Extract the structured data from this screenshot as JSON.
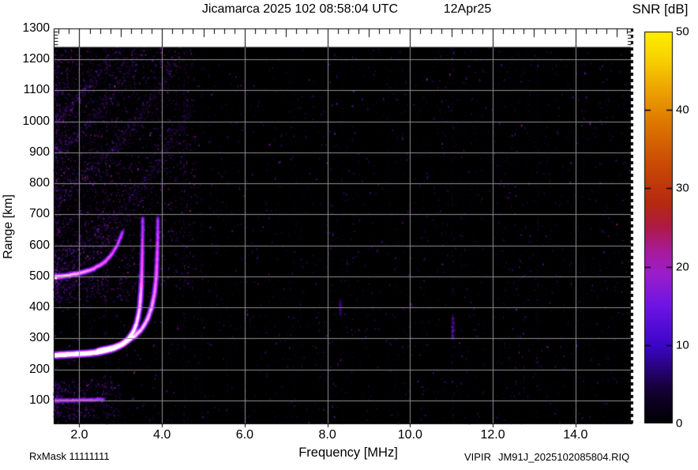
{
  "header": {
    "title": "Jicamarca 2025 102 08:58:04 UTC",
    "date": "12Apr25"
  },
  "axes": {
    "x": {
      "label": "Frequency [MHz]"
    },
    "y": {
      "label": "Range [km]"
    }
  },
  "footer": {
    "rx_mask": "RxMask 11111111",
    "instrument": "VIPIR",
    "filename": "JM91J_2025102085804.RIQ"
  },
  "chart_data": {
    "type": "heatmap",
    "title": "Jicamarca 2025 102 08:58:04 UTC 12Apr25",
    "xlabel": "Frequency [MHz]",
    "ylabel": "Range [km]",
    "xlim": [
      1.38,
      15.36
    ],
    "ylim": [
      26,
      1300
    ],
    "x_ticks": [
      2,
      4,
      6,
      8,
      10,
      12,
      14
    ],
    "x_tick_labels": [
      "2.0",
      "4.0",
      "6.0",
      "8.0",
      "10.0",
      "12.0",
      "14.0"
    ],
    "y_ticks": [
      100,
      200,
      300,
      400,
      500,
      600,
      700,
      800,
      900,
      1000,
      1100,
      1200,
      1300
    ],
    "data_top_km": 1240,
    "grid": true,
    "grid_color": "#8f8f8f",
    "colorbar": {
      "label": "SNR [dB]",
      "min": 0,
      "max": 50,
      "ticks": [
        0,
        10,
        20,
        30,
        40,
        50
      ],
      "gradient": [
        [
          0.0,
          "#000000"
        ],
        [
          0.09,
          "#160038"
        ],
        [
          0.2,
          "#3c06c8"
        ],
        [
          0.3,
          "#6e14e4"
        ],
        [
          0.38,
          "#9a1ecc"
        ],
        [
          0.44,
          "#a81a9a"
        ],
        [
          0.5,
          "#ae1a46"
        ],
        [
          0.56,
          "#b62810"
        ],
        [
          0.66,
          "#c94a06"
        ],
        [
          0.76,
          "#dc7400"
        ],
        [
          0.86,
          "#eea800"
        ],
        [
          0.93,
          "#f8d200"
        ],
        [
          1.0,
          "#ffee00"
        ]
      ]
    },
    "palette": [
      [
        0.0,
        8,
        2,
        18
      ],
      [
        0.12,
        70,
        16,
        150
      ],
      [
        0.25,
        120,
        24,
        210
      ],
      [
        0.4,
        190,
        30,
        160
      ],
      [
        0.5,
        225,
        60,
        16
      ],
      [
        0.65,
        255,
        120,
        16
      ],
      [
        0.8,
        255,
        176,
        24
      ],
      [
        1.0,
        255,
        238,
        64
      ]
    ],
    "traces": [
      {
        "name": "F-region O-mode",
        "pts": [
          [
            1.38,
            246,
            1
          ],
          [
            1.7,
            248,
            1
          ],
          [
            2.0,
            250,
            1
          ],
          [
            2.3,
            253,
            1
          ],
          [
            2.6,
            259,
            0.95
          ],
          [
            2.85,
            268,
            0.9
          ],
          [
            3.05,
            282,
            0.85
          ],
          [
            3.2,
            300,
            0.8
          ],
          [
            3.32,
            325,
            0.72
          ],
          [
            3.4,
            356,
            0.65
          ],
          [
            3.46,
            398,
            0.6
          ],
          [
            3.49,
            448,
            0.55
          ],
          [
            3.51,
            505,
            0.45
          ],
          [
            3.52,
            565,
            0.35
          ],
          [
            3.53,
            625,
            0.25
          ],
          [
            3.535,
            690,
            0.18
          ]
        ]
      },
      {
        "name": "F-region X-mode",
        "pts": [
          [
            2.45,
            262,
            0.7
          ],
          [
            2.7,
            268,
            0.7
          ],
          [
            2.95,
            277,
            0.68
          ],
          [
            3.15,
            290,
            0.66
          ],
          [
            3.35,
            308,
            0.64
          ],
          [
            3.52,
            332,
            0.6
          ],
          [
            3.65,
            362,
            0.58
          ],
          [
            3.75,
            400,
            0.55
          ],
          [
            3.82,
            445,
            0.5
          ],
          [
            3.86,
            495,
            0.45
          ],
          [
            3.88,
            550,
            0.38
          ],
          [
            3.895,
            615,
            0.28
          ],
          [
            3.9,
            690,
            0.2
          ]
        ]
      },
      {
        "name": "second-hop",
        "pts": [
          [
            1.38,
            498,
            0.65
          ],
          [
            1.7,
            503,
            0.6
          ],
          [
            2.0,
            510,
            0.55
          ],
          [
            2.3,
            522,
            0.5
          ],
          [
            2.55,
            540,
            0.42
          ],
          [
            2.75,
            565,
            0.35
          ],
          [
            2.92,
            600,
            0.28
          ],
          [
            3.05,
            645,
            0.22
          ]
        ]
      },
      {
        "name": "E-region",
        "pts": [
          [
            1.38,
            100,
            0.3
          ],
          [
            1.8,
            100,
            0.28
          ],
          [
            2.2,
            102,
            0.25
          ],
          [
            2.6,
            104,
            0.2
          ]
        ]
      }
    ],
    "spread_bands": [
      {
        "pts": [
          [
            1.38,
            1000
          ],
          [
            1.8,
            1055
          ],
          [
            2.2,
            1115
          ],
          [
            2.6,
            1180
          ],
          [
            2.95,
            1240
          ]
        ],
        "w": 22,
        "a": 0.5
      },
      {
        "pts": [
          [
            1.38,
            900
          ],
          [
            1.9,
            955
          ],
          [
            2.4,
            1025
          ],
          [
            2.9,
            1105
          ],
          [
            3.35,
            1195
          ],
          [
            3.55,
            1240
          ]
        ],
        "w": 30,
        "a": 0.45
      },
      {
        "pts": [
          [
            1.45,
            760
          ],
          [
            1.9,
            800
          ],
          [
            2.4,
            855
          ],
          [
            2.9,
            925
          ],
          [
            3.4,
            1010
          ],
          [
            3.9,
            1105
          ],
          [
            4.3,
            1200
          ]
        ],
        "w": 34,
        "a": 0.5,
        "hot": true
      },
      {
        "pts": [
          [
            1.5,
            555
          ],
          [
            2.0,
            597
          ],
          [
            2.5,
            650
          ],
          [
            3.0,
            715
          ],
          [
            3.5,
            795
          ],
          [
            4.0,
            890
          ],
          [
            4.45,
            990
          ],
          [
            4.75,
            1060
          ]
        ],
        "w": 36,
        "a": 0.5,
        "hot": true
      },
      {
        "pts": [
          [
            1.38,
            515
          ],
          [
            1.8,
            535
          ],
          [
            2.2,
            565
          ],
          [
            2.6,
            607
          ],
          [
            3.0,
            660
          ],
          [
            3.3,
            710
          ]
        ],
        "w": 22,
        "a": 0.4,
        "hot": true
      }
    ],
    "clutter_regions": [
      {
        "f": [
          1.38,
          3.0
        ],
        "r": [
          45,
          165
        ],
        "n": 700,
        "h": 0.3,
        "left": true
      },
      {
        "f": [
          1.38,
          3.4
        ],
        "r": [
          420,
          505
        ],
        "n": 420,
        "h": 0.32,
        "left": true
      },
      {
        "f": [
          1.4,
          4.8
        ],
        "r": [
          460,
          1240
        ],
        "n": 3200,
        "h": 0.4,
        "left": true
      }
    ],
    "rfi_lines": [
      {
        "f": 2.25,
        "a": 0.18
      },
      {
        "f": 2.64,
        "a": 0.3
      },
      {
        "f": 3.08,
        "a": 0.1
      },
      {
        "f": 4.52,
        "a": 0.22
      },
      {
        "f": 4.95,
        "a": 0.16
      },
      {
        "f": 5.55,
        "a": 0.08
      },
      {
        "f": 6.0,
        "a": 0.08
      },
      {
        "f": 7.2,
        "a": 0.07
      },
      {
        "f": 8.35,
        "a": 0.12
      },
      {
        "f": 9.65,
        "a": 0.09
      },
      {
        "f": 10.3,
        "a": 0.07
      },
      {
        "f": 11.02,
        "a": 0.18
      },
      {
        "f": 12.15,
        "a": 0.08
      },
      {
        "f": 13.08,
        "a": 0.15
      },
      {
        "f": 14.2,
        "a": 0.1
      }
    ],
    "blobs": [
      {
        "f": 11.02,
        "r": [
          300,
          380
        ],
        "a": 0.35
      },
      {
        "f": 8.3,
        "r": [
          380,
          430
        ],
        "a": 0.15
      }
    ]
  }
}
